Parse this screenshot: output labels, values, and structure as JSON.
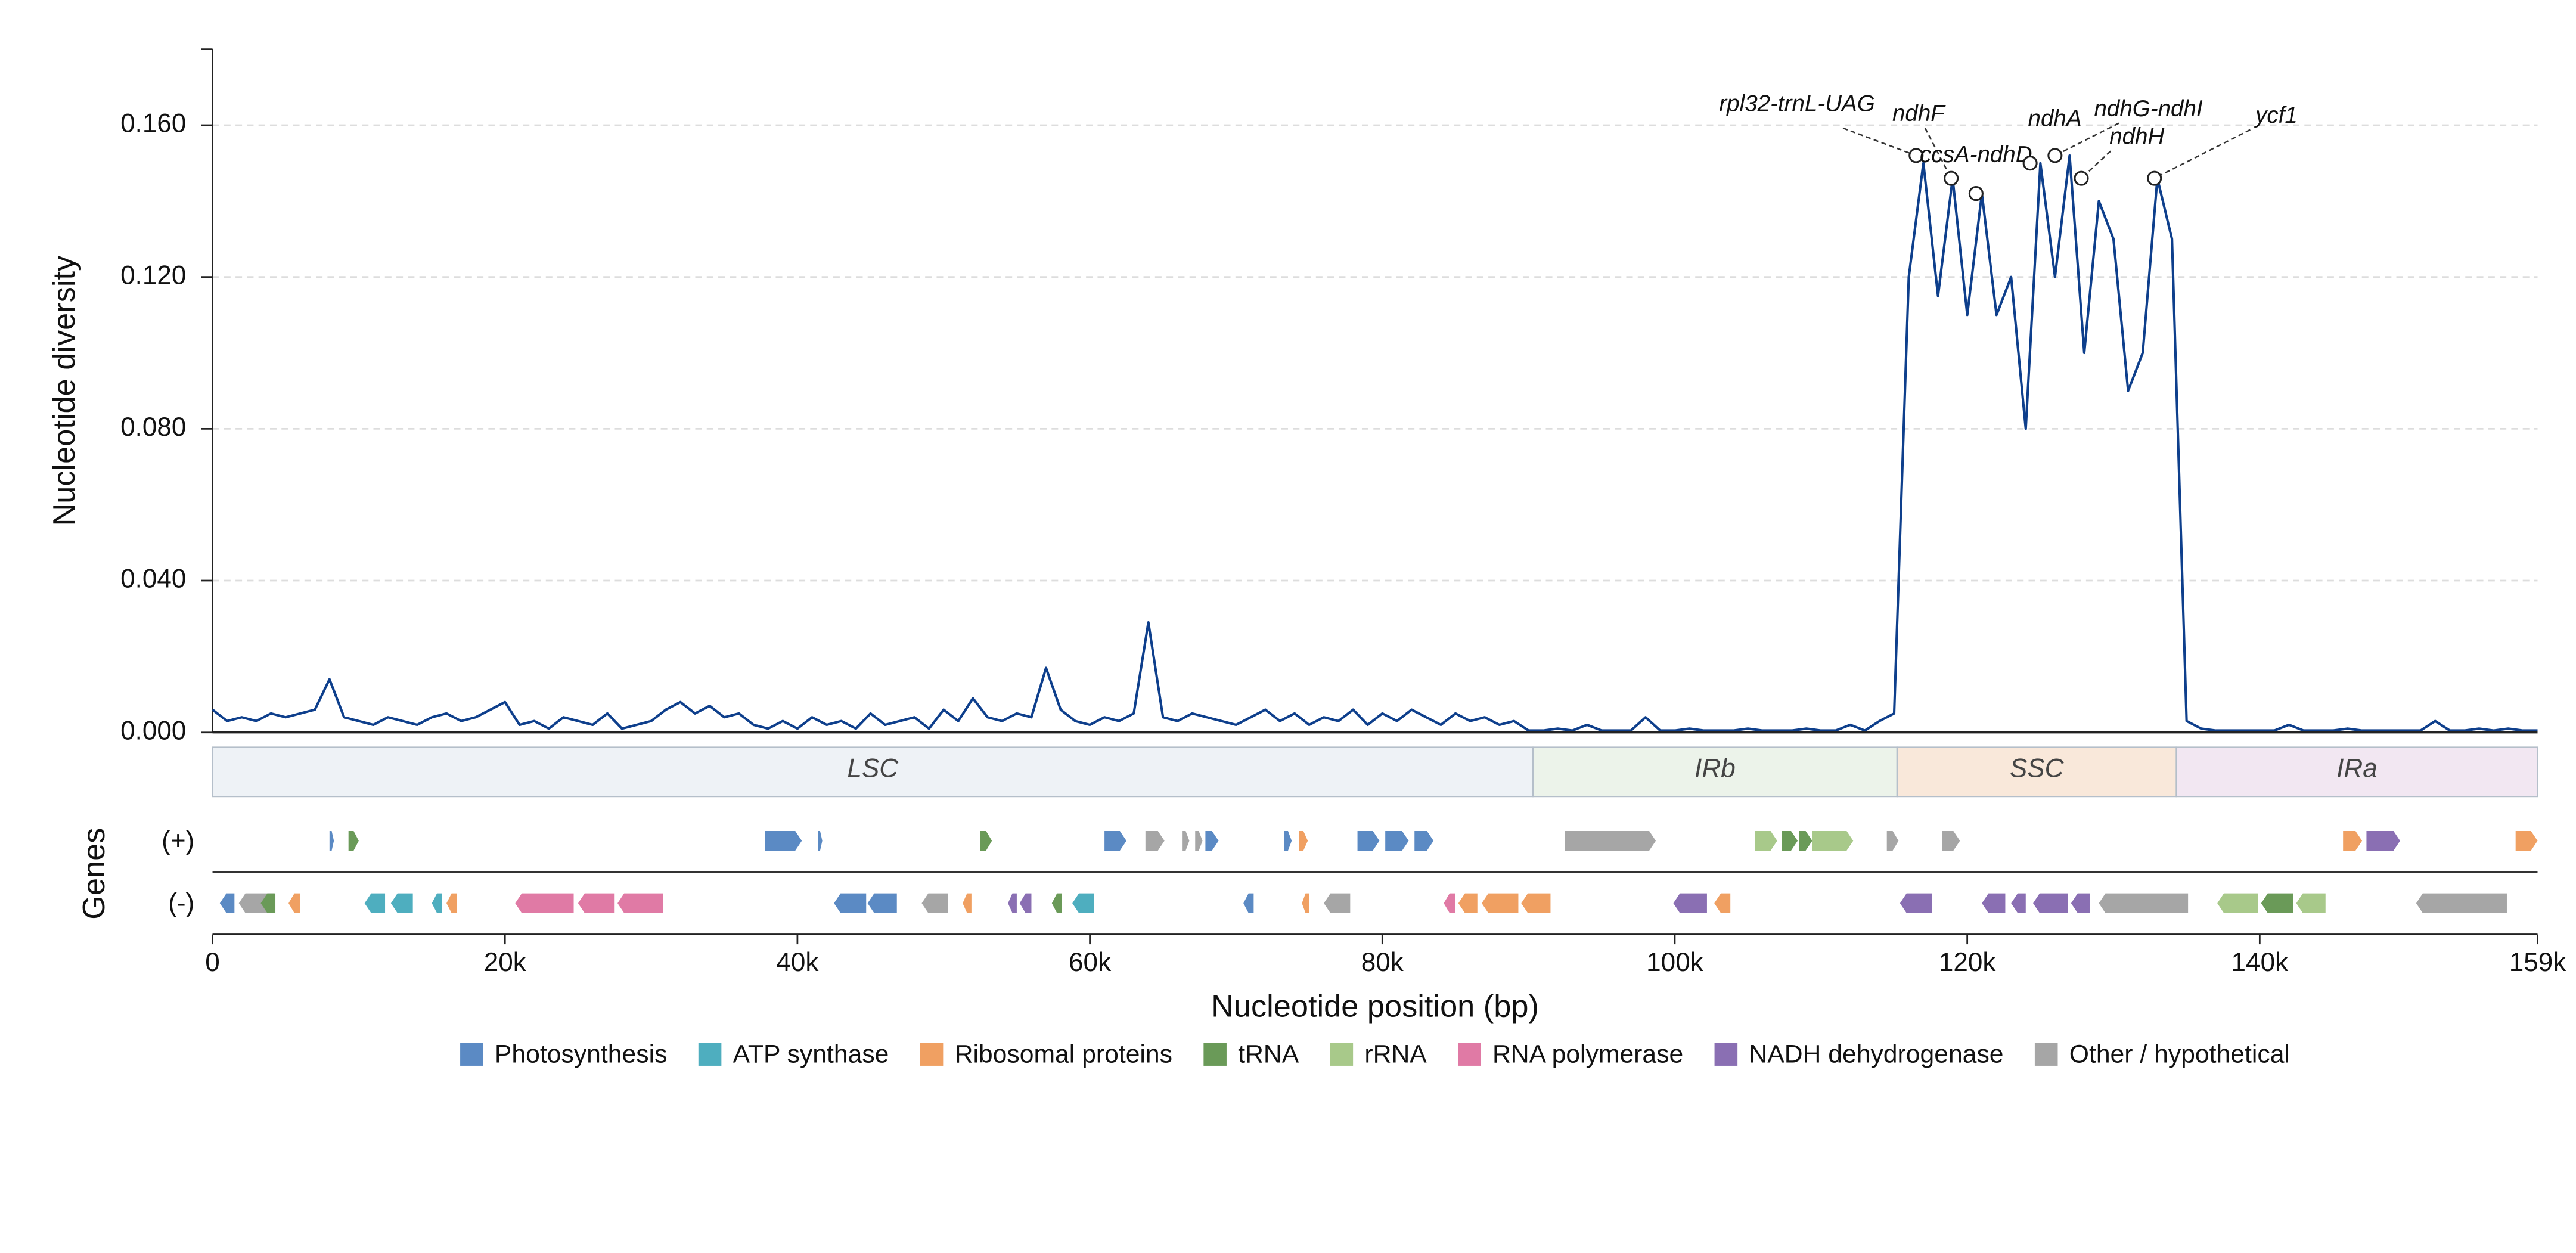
{
  "chart_data": {
    "type": "line",
    "ylabel": "Nucleotide diversity",
    "xlabel": "Nucleotide position (bp)",
    "track_title": "Genes",
    "tracks": [
      "(+)",
      "(-)"
    ],
    "xlim": [
      0,
      159000
    ],
    "ylim": [
      0,
      0.18
    ],
    "xticks": [
      0,
      {
        "value": 20000,
        "label": "20k"
      },
      {
        "value": 40000,
        "label": "40k"
      },
      {
        "value": 60000,
        "label": "60k"
      },
      {
        "value": 80000,
        "label": "80k"
      },
      {
        "value": 100000,
        "label": "100k"
      },
      {
        "value": 120000,
        "label": "120k"
      },
      {
        "value": 140000,
        "label": "140k"
      },
      {
        "value": 159000,
        "label": "159k"
      }
    ],
    "yticks": [
      {
        "value": 0,
        "label": "0.000"
      },
      {
        "value": 0.04,
        "label": "0.040"
      },
      {
        "value": 0.08,
        "label": "0.080"
      },
      {
        "value": 0.12,
        "label": "0.120"
      },
      {
        "value": 0.16,
        "label": "0.160"
      }
    ],
    "grid": true,
    "color": "#0e3f8c",
    "x": [
      0,
      1000,
      2000,
      3000,
      4000,
      5000,
      6000,
      7000,
      8000,
      9000,
      10000,
      11000,
      12000,
      13000,
      14000,
      15000,
      16000,
      17000,
      18000,
      19000,
      20000,
      21000,
      22000,
      23000,
      24000,
      25000,
      26000,
      27000,
      28000,
      29000,
      30000,
      31000,
      32000,
      33000,
      34000,
      35000,
      36000,
      37000,
      38000,
      39000,
      40000,
      41000,
      42000,
      43000,
      44000,
      45000,
      46000,
      47000,
      48000,
      49000,
      50000,
      51000,
      52000,
      53000,
      54000,
      55000,
      56000,
      57000,
      58000,
      59000,
      60000,
      61000,
      62000,
      63000,
      64000,
      65000,
      66000,
      67000,
      68000,
      69000,
      70000,
      71000,
      72000,
      73000,
      74000,
      75000,
      76000,
      77000,
      78000,
      79000,
      80000,
      81000,
      82000,
      83000,
      84000,
      85000,
      86000,
      87000,
      88000,
      89000,
      90000,
      91000,
      92000,
      93000,
      94000,
      95000,
      96000,
      97000,
      98000,
      99000,
      100000,
      101000,
      102000,
      103000,
      104000,
      105000,
      106000,
      107000,
      108000,
      109000,
      110000,
      111000,
      112000,
      113000,
      114000,
      115000,
      116000,
      117000,
      118000,
      119000,
      120000,
      121000,
      122000,
      123000,
      124000,
      125000,
      126000,
      127000,
      128000,
      129000,
      130000,
      131000,
      132000,
      133000,
      134000,
      135000,
      136000,
      137000,
      138000,
      139000,
      140000,
      141000,
      142000,
      143000,
      144000,
      145000,
      146000,
      147000,
      148000,
      149000,
      150000,
      151000,
      152000,
      153000,
      154000,
      155000,
      156000,
      157000,
      158000,
      159000
    ],
    "values": [
      0.006,
      0.003,
      0.004,
      0.003,
      0.005,
      0.004,
      0.005,
      0.006,
      0.014,
      0.004,
      0.003,
      0.002,
      0.004,
      0.003,
      0.002,
      0.004,
      0.005,
      0.003,
      0.004,
      0.006,
      0.008,
      0.002,
      0.003,
      0.001,
      0.004,
      0.003,
      0.002,
      0.005,
      0.001,
      0.002,
      0.003,
      0.006,
      0.008,
      0.005,
      0.007,
      0.004,
      0.005,
      0.002,
      0.001,
      0.003,
      0.001,
      0.004,
      0.002,
      0.003,
      0.001,
      0.005,
      0.002,
      0.003,
      0.004,
      0.001,
      0.006,
      0.003,
      0.009,
      0.004,
      0.003,
      0.005,
      0.004,
      0.017,
      0.006,
      0.003,
      0.002,
      0.004,
      0.003,
      0.005,
      0.029,
      0.004,
      0.003,
      0.005,
      0.004,
      0.003,
      0.002,
      0.004,
      0.006,
      0.003,
      0.005,
      0.002,
      0.004,
      0.003,
      0.006,
      0.002,
      0.005,
      0.003,
      0.006,
      0.004,
      0.002,
      0.005,
      0.003,
      0.004,
      0.002,
      0.003,
      0.0005,
      0.0005,
      0.001,
      0.0005,
      0.002,
      0.0005,
      0.0005,
      0.0005,
      0.004,
      0.0005,
      0.0005,
      0.001,
      0.0005,
      0.0005,
      0.0005,
      0.001,
      0.0005,
      0.0005,
      0.0005,
      0.001,
      0.0005,
      0.0005,
      0.002,
      0.0005,
      0.003,
      0.005,
      0.12,
      0.15,
      0.115,
      0.146,
      0.11,
      0.142,
      0.11,
      0.12,
      0.08,
      0.15,
      0.12,
      0.152,
      0.1,
      0.14,
      0.13,
      0.09,
      0.1,
      0.146,
      0.13,
      0.003,
      0.001,
      0.0005,
      0.0005,
      0.0005,
      0.0005,
      0.0005,
      0.002,
      0.0005,
      0.0005,
      0.0005,
      0.001,
      0.0005,
      0.0005,
      0.0005,
      0.0005,
      0.0005,
      0.003,
      0.0005,
      0.0005,
      0.001,
      0.0005,
      0.001,
      0.0005,
      0.0005
    ],
    "annotations": [
      {
        "text": "rpl32-trnL-UAG",
        "x": 116500,
        "y": 0.152
      },
      {
        "text": "ndhF",
        "x": 118900,
        "y": 0.146
      },
      {
        "text": "ccsA-ndhD",
        "x": 120600,
        "y": 0.142
      },
      {
        "text": "ndhA",
        "x": 124300,
        "y": 0.15
      },
      {
        "text": "ndhG-ndhI",
        "x": 126000,
        "y": 0.152
      },
      {
        "text": "ndhH",
        "x": 127800,
        "y": 0.146
      },
      {
        "text": "ycf1",
        "x": 132800,
        "y": 0.146
      }
    ],
    "regions": [
      {
        "name": "LSC",
        "start": 0,
        "end": 90300,
        "color": "#eef2f6"
      },
      {
        "name": "IRb",
        "start": 90300,
        "end": 115200,
        "color": "#ecf3ea"
      },
      {
        "name": "SSC",
        "start": 115200,
        "end": 134300,
        "color": "#f9e8da"
      },
      {
        "name": "IRa",
        "start": 134300,
        "end": 159000,
        "color": "#f2e7f2"
      }
    ],
    "categories": [
      {
        "name": "Photosynthesis",
        "color": "#5b8ac4"
      },
      {
        "name": "ATP synthase",
        "color": "#4eaebf"
      },
      {
        "name": "Ribosomal proteins",
        "color": "#f0a062"
      },
      {
        "name": "tRNA",
        "color": "#6a9a58"
      },
      {
        "name": "rRNA",
        "color": "#a8c98a"
      },
      {
        "name": "RNA polymerase",
        "color": "#e07aa5"
      },
      {
        "name": "NADH dehydrogenase",
        "color": "#8a6fb3"
      },
      {
        "name": "Other / hypothetical",
        "color": "#a6a6a6"
      }
    ],
    "genes": [
      {
        "start": 8000,
        "end": 8300,
        "track": 0,
        "category": 0
      },
      {
        "start": 9300,
        "end": 10000,
        "track": 0,
        "category": 3
      },
      {
        "start": 37800,
        "end": 40300,
        "track": 0,
        "category": 0
      },
      {
        "start": 41400,
        "end": 41700,
        "track": 0,
        "category": 0
      },
      {
        "start": 52500,
        "end": 53300,
        "track": 0,
        "category": 3
      },
      {
        "start": 61000,
        "end": 62500,
        "track": 0,
        "category": 0
      },
      {
        "start": 63800,
        "end": 65100,
        "track": 0,
        "category": 7
      },
      {
        "start": 66300,
        "end": 66800,
        "track": 0,
        "category": 7
      },
      {
        "start": 67200,
        "end": 67700,
        "track": 0,
        "category": 7
      },
      {
        "start": 67900,
        "end": 68800,
        "track": 0,
        "category": 0
      },
      {
        "start": 73300,
        "end": 73800,
        "track": 0,
        "category": 0
      },
      {
        "start": 74300,
        "end": 74900,
        "track": 0,
        "category": 2
      },
      {
        "start": 78300,
        "end": 79800,
        "track": 0,
        "category": 0
      },
      {
        "start": 80200,
        "end": 81800,
        "track": 0,
        "category": 0
      },
      {
        "start": 82200,
        "end": 83500,
        "track": 0,
        "category": 0
      },
      {
        "start": 92500,
        "end": 98700,
        "track": 0,
        "category": 7
      },
      {
        "start": 105500,
        "end": 107000,
        "track": 0,
        "category": 4
      },
      {
        "start": 107300,
        "end": 108400,
        "track": 0,
        "category": 3
      },
      {
        "start": 108500,
        "end": 109400,
        "track": 0,
        "category": 3
      },
      {
        "start": 109400,
        "end": 112200,
        "track": 0,
        "category": 4
      },
      {
        "start": 114500,
        "end": 115300,
        "track": 0,
        "category": 7
      },
      {
        "start": 118300,
        "end": 119500,
        "track": 0,
        "category": 7
      },
      {
        "start": 145700,
        "end": 147000,
        "track": 0,
        "category": 2
      },
      {
        "start": 147300,
        "end": 149600,
        "track": 0,
        "category": 6
      },
      {
        "start": 157500,
        "end": 159000,
        "track": 0,
        "category": 2
      },
      {
        "start": 500,
        "end": 1500,
        "track": 1,
        "category": 0
      },
      {
        "start": 1800,
        "end": 4200,
        "track": 1,
        "category": 7
      },
      {
        "start": 3300,
        "end": 4300,
        "track": 1,
        "category": 3
      },
      {
        "start": 5200,
        "end": 6000,
        "track": 1,
        "category": 2
      },
      {
        "start": 10400,
        "end": 11800,
        "track": 1,
        "category": 1
      },
      {
        "start": 12200,
        "end": 13700,
        "track": 1,
        "category": 1
      },
      {
        "start": 15000,
        "end": 15700,
        "track": 1,
        "category": 1
      },
      {
        "start": 16000,
        "end": 16700,
        "track": 1,
        "category": 2
      },
      {
        "start": 20700,
        "end": 24700,
        "track": 1,
        "category": 5
      },
      {
        "start": 25000,
        "end": 27500,
        "track": 1,
        "category": 5
      },
      {
        "start": 27700,
        "end": 30800,
        "track": 1,
        "category": 5
      },
      {
        "start": 42500,
        "end": 44700,
        "track": 1,
        "category": 0
      },
      {
        "start": 44800,
        "end": 46800,
        "track": 1,
        "category": 0
      },
      {
        "start": 48500,
        "end": 50300,
        "track": 1,
        "category": 7
      },
      {
        "start": 51300,
        "end": 51900,
        "track": 1,
        "category": 2
      },
      {
        "start": 54400,
        "end": 55000,
        "track": 1,
        "category": 6
      },
      {
        "start": 55200,
        "end": 56000,
        "track": 1,
        "category": 6
      },
      {
        "start": 57400,
        "end": 58100,
        "track": 1,
        "category": 3
      },
      {
        "start": 58800,
        "end": 60300,
        "track": 1,
        "category": 1
      },
      {
        "start": 70500,
        "end": 71200,
        "track": 1,
        "category": 0
      },
      {
        "start": 74500,
        "end": 75000,
        "track": 1,
        "category": 2
      },
      {
        "start": 76000,
        "end": 77800,
        "track": 1,
        "category": 7
      },
      {
        "start": 84200,
        "end": 85000,
        "track": 1,
        "category": 5
      },
      {
        "start": 85200,
        "end": 86500,
        "track": 1,
        "category": 2
      },
      {
        "start": 86800,
        "end": 89300,
        "track": 1,
        "category": 2
      },
      {
        "start": 89500,
        "end": 91500,
        "track": 1,
        "category": 2
      },
      {
        "start": 99900,
        "end": 102200,
        "track": 1,
        "category": 6
      },
      {
        "start": 102700,
        "end": 103800,
        "track": 1,
        "category": 2
      },
      {
        "start": 115400,
        "end": 117600,
        "track": 1,
        "category": 6
      },
      {
        "start": 121000,
        "end": 122600,
        "track": 1,
        "category": 6
      },
      {
        "start": 123000,
        "end": 124000,
        "track": 1,
        "category": 6
      },
      {
        "start": 124500,
        "end": 126900,
        "track": 1,
        "category": 6
      },
      {
        "start": 127100,
        "end": 128400,
        "track": 1,
        "category": 6
      },
      {
        "start": 129000,
        "end": 135100,
        "track": 1,
        "category": 7
      },
      {
        "start": 137100,
        "end": 139900,
        "track": 1,
        "category": 4
      },
      {
        "start": 140100,
        "end": 142300,
        "track": 1,
        "category": 3
      },
      {
        "start": 142500,
        "end": 144500,
        "track": 1,
        "category": 4
      },
      {
        "start": 150700,
        "end": 156900,
        "track": 1,
        "category": 7
      }
    ]
  }
}
